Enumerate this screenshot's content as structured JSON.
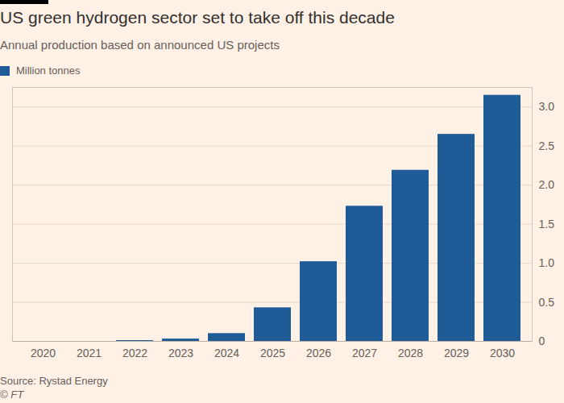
{
  "chart_data": {
    "type": "bar",
    "title": "US green hydrogen sector set to take off this decade",
    "subtitle": "Annual production based on announced US projects",
    "caption": "Source: Rystad Energy",
    "credit": "© FT",
    "categories": [
      "2020",
      "2021",
      "2022",
      "2023",
      "2024",
      "2025",
      "2026",
      "2027",
      "2028",
      "2029",
      "2030"
    ],
    "series": [
      {
        "name": "Million tonnes",
        "color": "#1f5b96",
        "values": [
          0,
          0,
          0.01,
          0.03,
          0.1,
          0.43,
          1.02,
          1.73,
          2.19,
          2.65,
          3.15
        ]
      }
    ],
    "ylim": [
      0,
      3.25
    ],
    "yticks": [
      0,
      0.5,
      {
        "value": 1,
        "label": "1.0"
      },
      1.5,
      {
        "value": 2,
        "label": "2.0"
      },
      2.5,
      {
        "value": 3,
        "label": "3.0"
      }
    ],
    "grid": true,
    "legend": "top-left"
  }
}
